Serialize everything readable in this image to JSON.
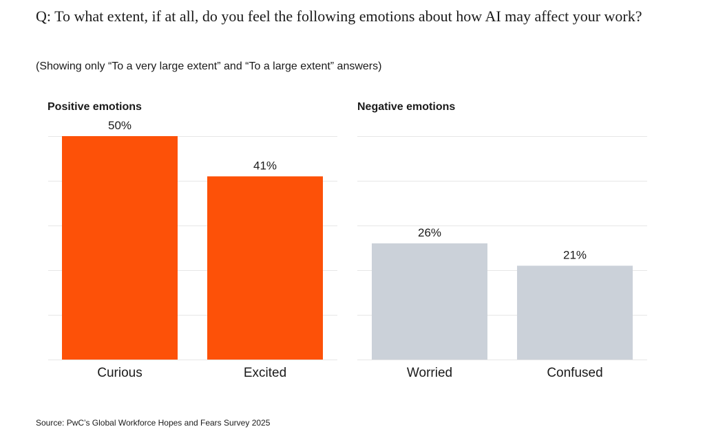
{
  "question": "Q: To what extent, if at all, do you feel the following emotions about how AI may affect your work?",
  "subtitle": "(Showing only “To a very large extent” and “To a large extent” answers)",
  "source": "Source: PwC’s Global Workforce Hopes and Fears Survey 2025",
  "colors": {
    "positive": "#fd5108",
    "negative": "#cbd1d9",
    "grid": "#e6e6e6",
    "text": "#1a1a1a"
  },
  "chart_data": [
    {
      "type": "bar",
      "title": "Positive emotions",
      "categories": [
        "Curious",
        "Excited"
      ],
      "values": [
        50,
        41
      ],
      "labels": [
        "50%",
        "41%"
      ],
      "ylim": [
        0,
        50
      ],
      "grid": true,
      "color": "#fd5108"
    },
    {
      "type": "bar",
      "title": "Negative emotions",
      "categories": [
        "Worried",
        "Confused"
      ],
      "values": [
        26,
        21
      ],
      "labels": [
        "26%",
        "21%"
      ],
      "ylim": [
        0,
        50
      ],
      "grid": true,
      "color": "#cbd1d9"
    }
  ]
}
